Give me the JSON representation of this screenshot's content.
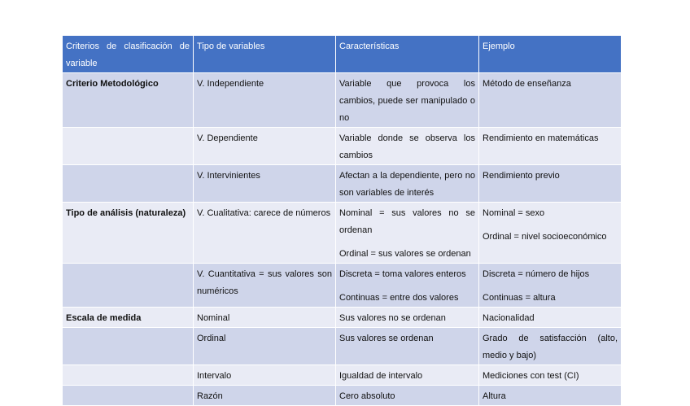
{
  "headers": [
    "Criterios de clasificación de variable",
    "Tipo de variables",
    "Características",
    "Ejemplo"
  ],
  "rows": [
    {
      "criterio": "Criterio Metodológico",
      "tipo": "V. Independiente",
      "caracteristicas": [
        "Variable que provoca los cambios, puede ser manipulado o no"
      ],
      "ejemplo": [
        "Método de enseñanza"
      ]
    },
    {
      "criterio": "",
      "tipo": "V. Dependiente",
      "caracteristicas": [
        "Variable donde se observa los cambios"
      ],
      "ejemplo": [
        "Rendimiento en matemáticas"
      ]
    },
    {
      "criterio": "",
      "tipo": "V. Intervinientes",
      "caracteristicas": [
        "Afectan a la dependiente, pero no son variables de interés"
      ],
      "ejemplo": [
        "Rendimiento previo"
      ]
    },
    {
      "criterio": "Tipo de análisis (naturaleza)",
      "tipo": "V. Cualitativa: carece de números",
      "caracteristicas": [
        "Nominal = sus valores no se ordenan",
        "Ordinal = sus valores se ordenan"
      ],
      "ejemplo": [
        "Nominal = sexo",
        "Ordinal = nivel socioeconómico"
      ]
    },
    {
      "criterio": "",
      "tipo": "V. Cuantitativa = sus valores son numéricos",
      "caracteristicas": [
        "Discreta = toma valores enteros",
        "Continuas = entre dos valores"
      ],
      "ejemplo": [
        "Discreta = número de hijos",
        "Continuas = altura"
      ]
    },
    {
      "criterio": "Escala de medida",
      "tipo": "Nominal",
      "caracteristicas": [
        "Sus valores no se ordenan"
      ],
      "ejemplo": [
        "Nacionalidad"
      ]
    },
    {
      "criterio": "",
      "tipo": "Ordinal",
      "caracteristicas": [
        "Sus valores se ordenan"
      ],
      "ejemplo": [
        "Grado de satisfacción (alto, medio y bajo)"
      ]
    },
    {
      "criterio": "",
      "tipo": "Intervalo",
      "caracteristicas": [
        "Igualdad de intervalo"
      ],
      "ejemplo": [
        "Mediciones con test (CI)"
      ]
    },
    {
      "criterio": "",
      "tipo": "Razón",
      "caracteristicas": [
        "Cero absoluto"
      ],
      "ejemplo": [
        "Altura"
      ]
    }
  ],
  "colors": {
    "header": "#4472c4",
    "row_dark": "#cfd5ea",
    "row_light": "#e9ebf5"
  }
}
